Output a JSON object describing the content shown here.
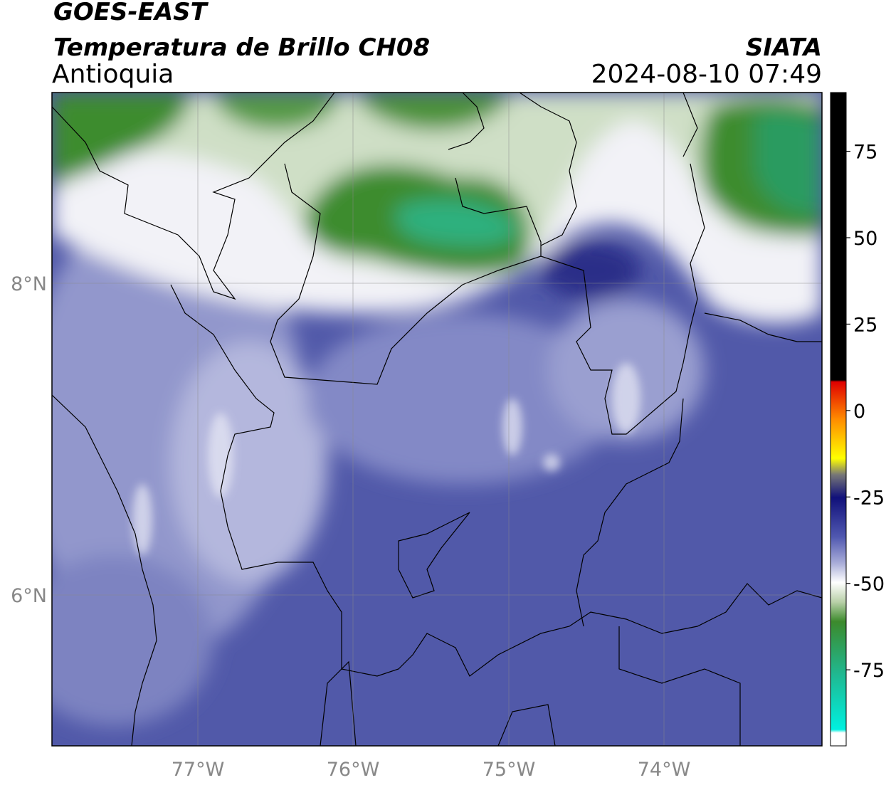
{
  "header": {
    "title": "GOES-EAST",
    "subtitle": "Temperatura de Brillo CH08",
    "region": "Antioquia",
    "source": "SIATA",
    "datetime": "2024-08-10 07:49"
  },
  "map": {
    "lat_labels": [
      "8°N",
      "6°N"
    ],
    "lon_labels": [
      "77°W",
      "76°W",
      "75°W",
      "74°W"
    ]
  },
  "colorbar": {
    "range": [
      -97,
      92
    ],
    "ticks": [
      75,
      50,
      25,
      0,
      -25,
      -50,
      -75
    ]
  }
}
